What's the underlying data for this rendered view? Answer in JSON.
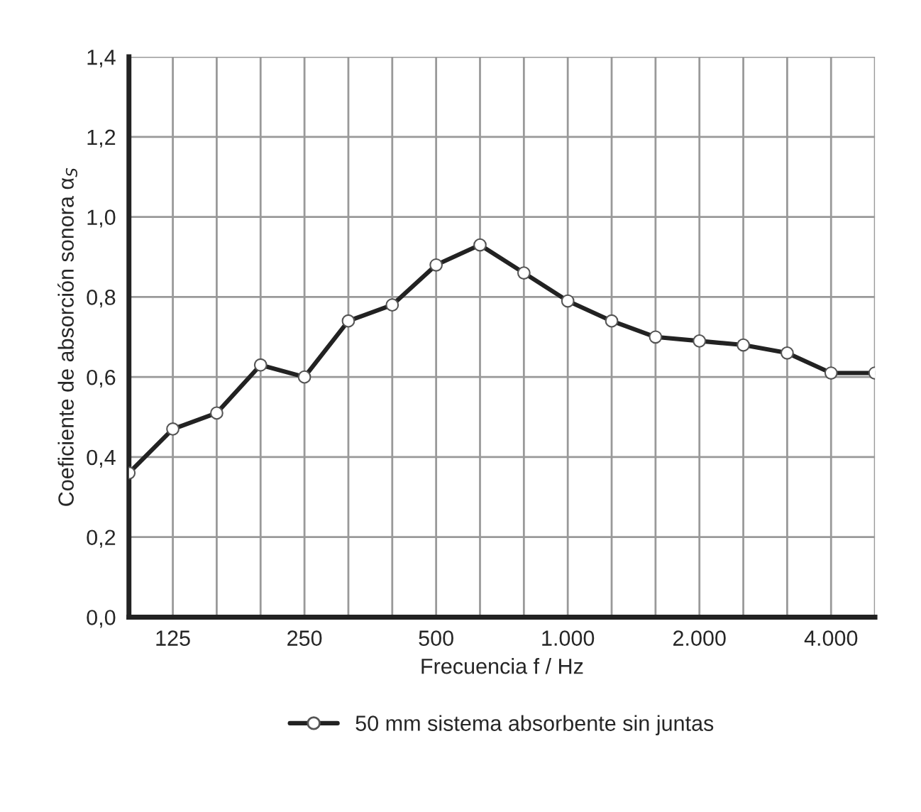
{
  "chart_data": {
    "type": "line",
    "xlabel": "Frecuencia f / Hz",
    "ylabel": "Coeficiente de absorción sonora α$_{S}$",
    "categories": [
      null,
      "125",
      null,
      null,
      "250",
      null,
      null,
      "500",
      null,
      null,
      "1.000",
      null,
      null,
      "2.000",
      null,
      null,
      "4.000",
      null
    ],
    "series": [
      {
        "name": "50 mm sistema absorbente sin juntas",
        "color": "#222222",
        "values": [
          0.36,
          0.47,
          0.51,
          0.63,
          0.6,
          0.74,
          0.78,
          0.88,
          0.93,
          0.86,
          0.79,
          0.74,
          0.7,
          0.69,
          0.68,
          0.66,
          0.61,
          0.61
        ]
      }
    ],
    "ylim": [
      0,
      1.4
    ],
    "yticks": [
      {
        "value": 0,
        "label": "0,0"
      },
      {
        "value": 0.2,
        "label": "0,2"
      },
      {
        "value": 0.4,
        "label": "0,4"
      },
      {
        "value": 0.6,
        "label": "0,6"
      },
      {
        "value": 0.8,
        "label": "0,8"
      },
      {
        "value": 1.0,
        "label": "1,0"
      },
      {
        "value": 1.2,
        "label": "1,2"
      },
      {
        "value": 1.4,
        "label": "1,4"
      }
    ],
    "grid": true,
    "legend": "bottom",
    "marker": "circle",
    "line_style": "solid"
  }
}
